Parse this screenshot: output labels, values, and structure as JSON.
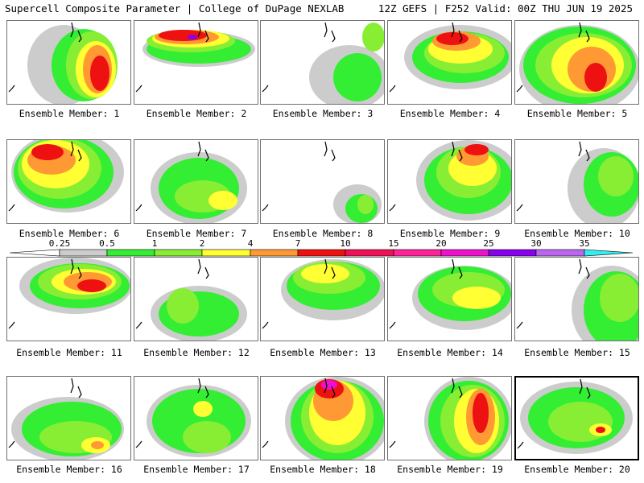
{
  "header": {
    "title": "Supercell Composite Parameter | College of DuPage NEXLAB",
    "run_info": "12Z GEFS | F252 Valid: 00Z THU JUN 19 2025"
  },
  "colorbar": {
    "levels": [
      "0.25",
      "0.5",
      "1",
      "2",
      "4",
      "7",
      "10",
      "15",
      "20",
      "25",
      "30",
      "35"
    ],
    "colors": [
      "#cccccc",
      "#33ee33",
      "#88ee33",
      "#ffff33",
      "#ff9933",
      "#ee1111",
      "#ee1155",
      "#ff2299",
      "#ee11cc",
      "#8800ee",
      "#bb66ee",
      "#33eeee"
    ]
  },
  "members": [
    {
      "label": "Ensemble Member: 1"
    },
    {
      "label": "Ensemble Member: 2"
    },
    {
      "label": "Ensemble Member: 3"
    },
    {
      "label": "Ensemble Member: 4"
    },
    {
      "label": "Ensemble Member: 5"
    },
    {
      "label": "Ensemble Member: 6"
    },
    {
      "label": "Ensemble Member: 7"
    },
    {
      "label": "Ensemble Member: 8"
    },
    {
      "label": "Ensemble Member: 9"
    },
    {
      "label": "Ensemble Member: 10"
    },
    {
      "label": "Ensemble Member: 11"
    },
    {
      "label": "Ensemble Member: 12"
    },
    {
      "label": "Ensemble Member: 13"
    },
    {
      "label": "Ensemble Member: 14"
    },
    {
      "label": "Ensemble Member: 15"
    },
    {
      "label": "Ensemble Member: 16"
    },
    {
      "label": "Ensemble Member: 17"
    },
    {
      "label": "Ensemble Member: 18"
    },
    {
      "label": "Ensemble Member: 19"
    },
    {
      "label": "Ensemble Member: 20"
    }
  ],
  "selected_member": "Ensemble Member: 20"
}
